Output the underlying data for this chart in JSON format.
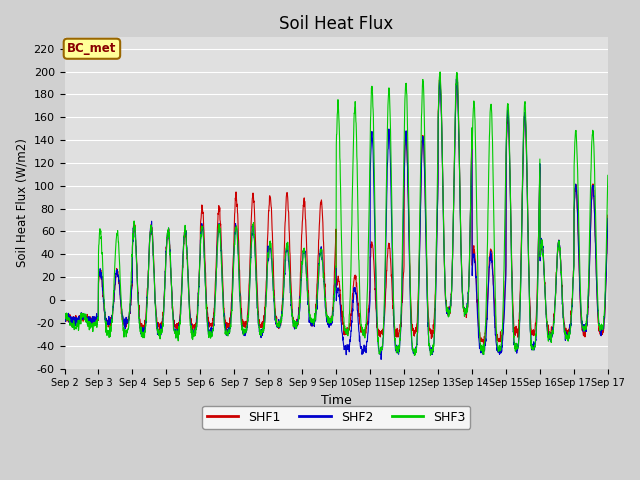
{
  "title": "Soil Heat Flux",
  "xlabel": "Time",
  "ylabel": "Soil Heat Flux (W/m2)",
  "ylim": [
    -60,
    230
  ],
  "yticks": [
    -60,
    -40,
    -20,
    0,
    20,
    40,
    60,
    80,
    100,
    120,
    140,
    160,
    180,
    200,
    220
  ],
  "colors": {
    "SHF1": "#cc0000",
    "SHF2": "#0000cc",
    "SHF3": "#00cc00"
  },
  "fig_bg": "#d0d0d0",
  "plot_bg": "#e0e0e0",
  "legend_label": "BC_met",
  "legend_bg": "#ffff99",
  "legend_border": "#996600",
  "legend_text": "#880000",
  "days": [
    "Sep 2",
    "Sep 3",
    "Sep 4",
    "Sep 5",
    "Sep 6",
    "Sep 7",
    "Sep 8",
    "Sep 9",
    "Sep 10",
    "Sep 11",
    "Sep 12",
    "Sep 13",
    "Sep 14",
    "Sep 15",
    "Sep 16",
    "Sep 17"
  ],
  "n_days": 16,
  "linewidth": 0.8,
  "shf1_peaks": [
    -15,
    25,
    65,
    60,
    80,
    92,
    92,
    87,
    20,
    50,
    145,
    195,
    45,
    162,
    50,
    100
  ],
  "shf1_troughs": [
    -18,
    -20,
    -23,
    -23,
    -22,
    -22,
    -22,
    -20,
    -28,
    -30,
    -28,
    -10,
    -35,
    -28,
    -28,
    -28
  ],
  "shf2_peaks": [
    -15,
    25,
    65,
    62,
    65,
    65,
    47,
    44,
    10,
    145,
    145,
    190,
    40,
    165,
    50,
    100
  ],
  "shf2_troughs": [
    -18,
    -20,
    -28,
    -28,
    -28,
    -28,
    -22,
    -20,
    -44,
    -45,
    -45,
    -10,
    -44,
    -42,
    -32,
    -25
  ],
  "shf3_peaks": [
    -13,
    60,
    65,
    62,
    65,
    65,
    50,
    44,
    170,
    185,
    190,
    198,
    172,
    172,
    50,
    148
  ],
  "shf3_troughs": [
    -23,
    -28,
    -30,
    -30,
    -30,
    -28,
    -22,
    -18,
    -28,
    -44,
    -45,
    -10,
    -43,
    -42,
    -32,
    -25
  ],
  "peak_sharpness": 4.0
}
